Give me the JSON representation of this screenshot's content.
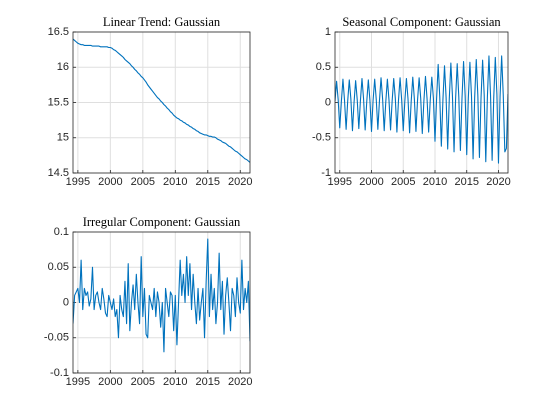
{
  "chart_data": [
    {
      "type": "line",
      "title": "Linear Trend: Gaussian",
      "color": "#0072bd",
      "grid": true,
      "xlim": [
        1994.25,
        2021.5
      ],
      "xticks": [
        1995,
        2000,
        2005,
        2010,
        2015,
        2020
      ],
      "ylim": [
        14.5,
        16.5
      ],
      "yticks": [
        14.5,
        15,
        15.5,
        16,
        16.5
      ],
      "x": [
        1994.25,
        1994.5,
        1994.75,
        1995,
        1995.25,
        1995.5,
        1995.75,
        1996,
        1996.25,
        1996.5,
        1996.75,
        1997,
        1997.25,
        1997.5,
        1997.75,
        1998,
        1998.25,
        1998.5,
        1998.75,
        1999,
        1999.25,
        1999.5,
        1999.75,
        2000,
        2000.25,
        2000.5,
        2000.75,
        2001,
        2001.25,
        2001.5,
        2001.75,
        2002,
        2002.25,
        2002.5,
        2002.75,
        2003,
        2003.25,
        2003.5,
        2003.75,
        2004,
        2004.25,
        2004.5,
        2004.75,
        2005,
        2005.25,
        2005.5,
        2005.75,
        2006,
        2006.25,
        2006.5,
        2006.75,
        2007,
        2007.25,
        2007.5,
        2007.75,
        2008,
        2008.25,
        2008.5,
        2008.75,
        2009,
        2009.25,
        2009.5,
        2009.75,
        2010,
        2010.25,
        2010.5,
        2010.75,
        2011,
        2011.25,
        2011.5,
        2011.75,
        2012,
        2012.25,
        2012.5,
        2012.75,
        2013,
        2013.25,
        2013.5,
        2013.75,
        2014,
        2014.25,
        2014.5,
        2014.75,
        2015,
        2015.25,
        2015.5,
        2015.75,
        2016,
        2016.25,
        2016.5,
        2016.75,
        2017,
        2017.25,
        2017.5,
        2017.75,
        2018,
        2018.25,
        2018.5,
        2018.75,
        2019,
        2019.25,
        2019.5,
        2019.75,
        2020,
        2020.25,
        2020.5,
        2020.75,
        2021,
        2021.25,
        2021.5
      ],
      "values": [
        16.4,
        16.38,
        16.36,
        16.34,
        16.33,
        16.32,
        16.32,
        16.31,
        16.31,
        16.31,
        16.31,
        16.31,
        16.3,
        16.3,
        16.3,
        16.3,
        16.3,
        16.29,
        16.29,
        16.29,
        16.29,
        16.29,
        16.28,
        16.28,
        16.27,
        16.25,
        16.24,
        16.22,
        16.2,
        16.18,
        16.16,
        16.14,
        16.11,
        16.09,
        16.07,
        16.05,
        16.02,
        16.0,
        15.97,
        15.95,
        15.92,
        15.9,
        15.87,
        15.85,
        15.82,
        15.79,
        15.75,
        15.72,
        15.69,
        15.66,
        15.63,
        15.6,
        15.57,
        15.55,
        15.52,
        15.5,
        15.47,
        15.45,
        15.42,
        15.4,
        15.37,
        15.35,
        15.32,
        15.3,
        15.28,
        15.27,
        15.25,
        15.24,
        15.22,
        15.21,
        15.19,
        15.18,
        15.16,
        15.15,
        15.13,
        15.12,
        15.1,
        15.09,
        15.07,
        15.06,
        15.05,
        15.04,
        15.04,
        15.03,
        15.02,
        15.02,
        15.01,
        15.01,
        15.0,
        14.98,
        14.97,
        14.96,
        14.94,
        14.93,
        14.92,
        14.9,
        14.88,
        14.87,
        14.85,
        14.83,
        14.81,
        14.8,
        14.78,
        14.76,
        14.74,
        14.72,
        14.7,
        14.69,
        14.67,
        14.65
      ]
    },
    {
      "type": "line",
      "title": "Seasonal Component: Gaussian",
      "color": "#0072bd",
      "grid": true,
      "xlim": [
        1994.25,
        2021.5
      ],
      "xticks": [
        1995,
        2000,
        2005,
        2010,
        2015,
        2020
      ],
      "ylim": [
        -1,
        1
      ],
      "yticks": [
        -1,
        -0.5,
        0,
        0.5,
        1
      ],
      "x": [
        1994.25,
        1994.5,
        1994.75,
        1995,
        1995.25,
        1995.5,
        1995.75,
        1996,
        1996.25,
        1996.5,
        1996.75,
        1997,
        1997.25,
        1997.5,
        1997.75,
        1998,
        1998.25,
        1998.5,
        1998.75,
        1999,
        1999.25,
        1999.5,
        1999.75,
        2000,
        2000.25,
        2000.5,
        2000.75,
        2001,
        2001.25,
        2001.5,
        2001.75,
        2002,
        2002.25,
        2002.5,
        2002.75,
        2003,
        2003.25,
        2003.5,
        2003.75,
        2004,
        2004.25,
        2004.5,
        2004.75,
        2005,
        2005.25,
        2005.5,
        2005.75,
        2006,
        2006.25,
        2006.5,
        2006.75,
        2007,
        2007.25,
        2007.5,
        2007.75,
        2008,
        2008.25,
        2008.5,
        2008.75,
        2009,
        2009.25,
        2009.5,
        2009.75,
        2010,
        2010.25,
        2010.5,
        2010.75,
        2011,
        2011.25,
        2011.5,
        2011.75,
        2012,
        2012.25,
        2012.5,
        2012.75,
        2013,
        2013.25,
        2013.5,
        2013.75,
        2014,
        2014.25,
        2014.5,
        2014.75,
        2015,
        2015.25,
        2015.5,
        2015.75,
        2016,
        2016.25,
        2016.5,
        2016.75,
        2017,
        2017.25,
        2017.5,
        2017.75,
        2018,
        2018.25,
        2018.5,
        2018.75,
        2019,
        2019.25,
        2019.5,
        2019.75,
        2020,
        2020.25,
        2020.5,
        2020.75,
        2021,
        2021.25,
        2021.5
      ],
      "values": [
        0.02,
        0.3,
        0.04,
        -0.36,
        0.01,
        0.33,
        0.03,
        -0.38,
        0.02,
        0.32,
        0.05,
        -0.4,
        0.0,
        0.31,
        0.04,
        -0.37,
        0.02,
        0.34,
        0.05,
        -0.39,
        0.01,
        0.32,
        0.03,
        -0.41,
        0.03,
        0.33,
        0.04,
        -0.38,
        0.02,
        0.35,
        0.05,
        -0.4,
        0.01,
        0.33,
        0.04,
        -0.39,
        0.02,
        0.34,
        0.06,
        -0.42,
        0.03,
        0.35,
        0.04,
        -0.4,
        0.02,
        0.34,
        0.05,
        -0.43,
        0.01,
        0.36,
        0.05,
        -0.41,
        0.03,
        0.35,
        0.06,
        -0.44,
        0.02,
        0.37,
        0.05,
        -0.42,
        0.03,
        0.36,
        0.06,
        -0.55,
        0.05,
        0.54,
        0.08,
        -0.62,
        0.04,
        0.52,
        0.07,
        -0.66,
        0.05,
        0.56,
        0.09,
        -0.7,
        0.06,
        0.55,
        0.08,
        -0.68,
        0.05,
        0.58,
        0.1,
        -0.74,
        0.06,
        0.57,
        0.09,
        -0.8,
        0.07,
        0.61,
        0.1,
        -0.78,
        0.06,
        0.6,
        0.11,
        -0.84,
        0.07,
        0.66,
        0.1,
        -0.82,
        0.06,
        0.64,
        0.12,
        -0.86,
        0.08,
        0.66,
        0.11,
        -0.7,
        -0.65,
        0.12
      ]
    },
    {
      "type": "line",
      "title": "Irregular Component: Gaussian",
      "color": "#0072bd",
      "grid": true,
      "xlim": [
        1994.25,
        2021.5
      ],
      "xticks": [
        1995,
        2000,
        2005,
        2010,
        2015,
        2020
      ],
      "ylim": [
        -0.1,
        0.1
      ],
      "yticks": [
        -0.1,
        -0.05,
        0,
        0.05,
        0.1
      ],
      "x": [
        1994.25,
        1994.5,
        1994.75,
        1995,
        1995.25,
        1995.5,
        1995.75,
        1996,
        1996.25,
        1996.5,
        1996.75,
        1997,
        1997.25,
        1997.5,
        1997.75,
        1998,
        1998.25,
        1998.5,
        1998.75,
        1999,
        1999.25,
        1999.5,
        1999.75,
        2000,
        2000.25,
        2000.5,
        2000.75,
        2001,
        2001.25,
        2001.5,
        2001.75,
        2002,
        2002.25,
        2002.5,
        2002.75,
        2003,
        2003.25,
        2003.5,
        2003.75,
        2004,
        2004.25,
        2004.5,
        2004.75,
        2005,
        2005.25,
        2005.5,
        2005.75,
        2006,
        2006.25,
        2006.5,
        2006.75,
        2007,
        2007.25,
        2007.5,
        2007.75,
        2008,
        2008.25,
        2008.5,
        2008.75,
        2009,
        2009.25,
        2009.5,
        2009.75,
        2010,
        2010.25,
        2010.5,
        2010.75,
        2011,
        2011.25,
        2011.5,
        2011.75,
        2012,
        2012.25,
        2012.5,
        2012.75,
        2013,
        2013.25,
        2013.5,
        2013.75,
        2014,
        2014.25,
        2014.5,
        2014.75,
        2015,
        2015.25,
        2015.5,
        2015.75,
        2016,
        2016.25,
        2016.5,
        2016.75,
        2017,
        2017.25,
        2017.5,
        2017.75,
        2018,
        2018.25,
        2018.5,
        2018.75,
        2019,
        2019.25,
        2019.5,
        2019.75,
        2020,
        2020.25,
        2020.5,
        2020.75,
        2021,
        2021.25,
        2021.5
      ],
      "values": [
        -0.03,
        0.01,
        0.015,
        0.02,
        0.0,
        0.06,
        -0.01,
        0.02,
        0.01,
        0.015,
        -0.005,
        0.005,
        0.05,
        -0.01,
        0.01,
        0.015,
        0.0,
        -0.01,
        0.02,
        0.005,
        -0.015,
        -0.02,
        0.01,
        0.0,
        -0.01,
        0.005,
        -0.02,
        -0.01,
        -0.05,
        0.01,
        -0.01,
        -0.02,
        0.03,
        -0.03,
        0.055,
        -0.04,
        0.0,
        0.025,
        -0.01,
        0.04,
        0.0,
        -0.03,
        0.065,
        -0.02,
        0.02,
        -0.045,
        -0.05,
        0.01,
        0.0,
        -0.01,
        0.02,
        -0.02,
        0.015,
        0.0,
        -0.035,
        0.0,
        -0.07,
        0.02,
        0.0,
        -0.02,
        0.015,
        0.01,
        -0.04,
        0.01,
        -0.06,
        0.0,
        0.06,
        0.01,
        0.04,
        0.0,
        0.065,
        0.01,
        0.055,
        -0.01,
        0.04,
        0.0,
        -0.03,
        0.02,
        -0.025,
        0.0,
        0.02,
        -0.05,
        0.03,
        0.09,
        -0.02,
        0.04,
        -0.01,
        0.02,
        -0.03,
        0.0,
        0.07,
        -0.01,
        0.03,
        -0.045,
        0.01,
        0.035,
        0.0,
        -0.04,
        0.02,
        0.01,
        -0.02,
        0.035,
        0.0,
        -0.015,
        0.06,
        -0.01,
        0.02,
        0.0,
        0.03,
        -0.055
      ]
    }
  ]
}
